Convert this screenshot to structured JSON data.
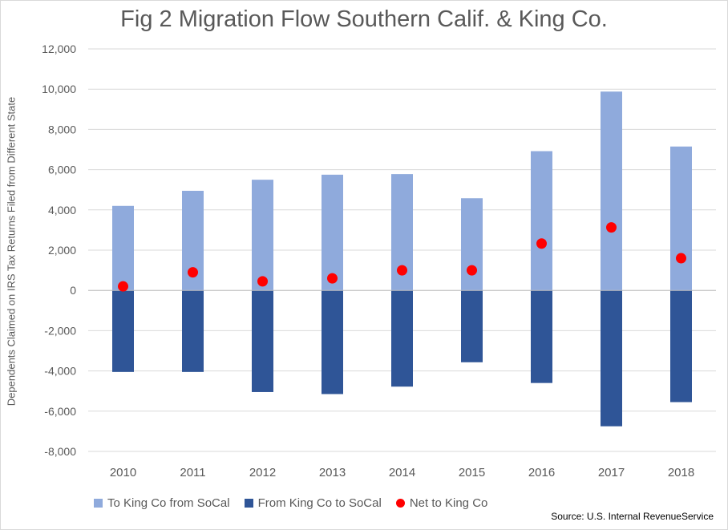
{
  "chart_data": {
    "type": "bar",
    "title": "Fig 2 Migration Flow Southern Calif. & King Co.",
    "ylabel": "Dependents Claimed on IRS Tax Returns Filed from Different State",
    "xlabel": "",
    "categories": [
      "2010",
      "2011",
      "2012",
      "2013",
      "2014",
      "2015",
      "2016",
      "2017",
      "2018"
    ],
    "ylim": [
      -8000,
      12000
    ],
    "yticks": [
      12000,
      10000,
      8000,
      6000,
      4000,
      2000,
      0,
      -2000,
      -4000,
      -6000,
      -8000
    ],
    "ytick_labels": [
      "12,000",
      "10,000",
      "8,000",
      "6,000",
      "4,000",
      "2,000",
      "0",
      "-2,000",
      "-4,000",
      "-6,000",
      "-8,000"
    ],
    "grid": true,
    "legend_position": "bottom",
    "series": [
      {
        "name": "To King Co from SoCal",
        "type": "bar",
        "color": "#8faadc",
        "values": [
          4200,
          4950,
          5500,
          5750,
          5780,
          4580,
          6920,
          9880,
          7150
        ]
      },
      {
        "name": "From King Co to SoCal",
        "type": "bar",
        "color": "#2f5597",
        "values": [
          -4050,
          -4050,
          -5050,
          -5150,
          -4780,
          -3570,
          -4600,
          -6750,
          -5550
        ]
      },
      {
        "name": "Net to King Co",
        "type": "scatter",
        "color": "#ff0000",
        "values": [
          200,
          900,
          450,
          600,
          1000,
          1000,
          2330,
          3130,
          1600
        ]
      }
    ]
  },
  "source": "Source: U.S. Internal RevenueService"
}
